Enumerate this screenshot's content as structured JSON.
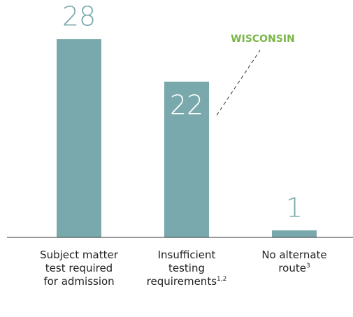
{
  "chart_data": {
    "type": "bar",
    "categories": [
      "Subject matter test required for admission",
      "Insufficient testing requirements",
      "No alternate route"
    ],
    "category_notes": [
      null,
      "1,2",
      "3"
    ],
    "values": [
      28,
      22,
      1
    ],
    "color": "#7aa9ad",
    "annotation": {
      "text": "WISCONSIN",
      "category": 1,
      "color": "#7ab648"
    }
  }
}
